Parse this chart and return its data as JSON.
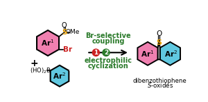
{
  "bg_color": "#ffffff",
  "pink_color": "#f080b0",
  "cyan_color": "#60c8e0",
  "sulfoxide_s_color": "#e8a000",
  "step1_color": "#cc2222",
  "step2_color": "#2a7a2a",
  "label_color": "#2a7a2a",
  "br_color": "#cc2222",
  "top_text_line1": "Br-selective",
  "top_text_line2": "coupling",
  "bottom_text_line1": "electrophilic",
  "bottom_text_line2": "cyclization",
  "product_label1": "dibenzothiophene",
  "product_label2": "S-oxides"
}
